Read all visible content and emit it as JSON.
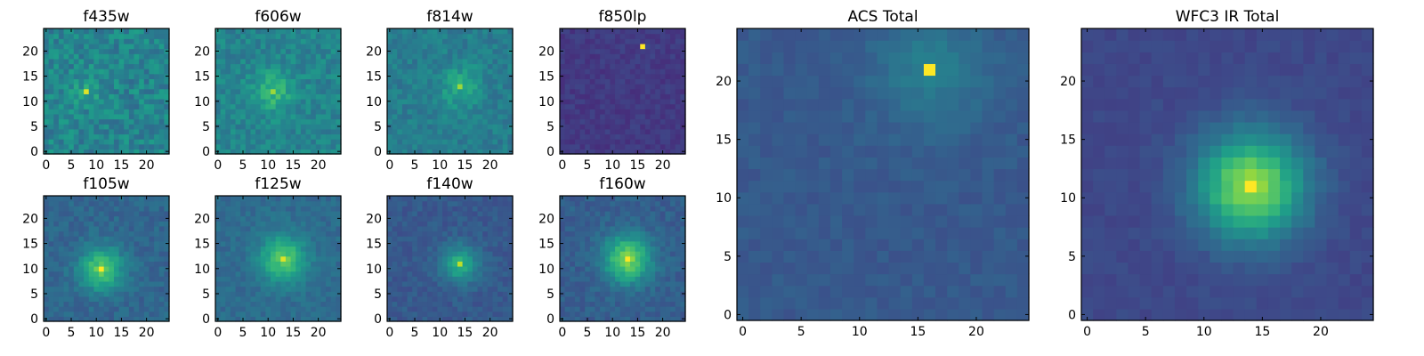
{
  "chart_data": [
    {
      "type": "heatmap",
      "title": "f435w",
      "xticks": [
        0,
        5,
        10,
        15,
        20
      ],
      "yticks": [
        0,
        5,
        10,
        15,
        20
      ],
      "xlim": [
        -0.5,
        24.5
      ],
      "ylim": [
        -0.5,
        24.5
      ],
      "grid_size": [
        25,
        25
      ],
      "colormap": "viridis",
      "peak": [
        8,
        12
      ],
      "peak_value": 0.95,
      "background": 0.45,
      "noise": 0.22,
      "blob_sigma": 2.5,
      "blob_amp": 0.1
    },
    {
      "type": "heatmap",
      "title": "f606w",
      "xticks": [
        0,
        5,
        10,
        15,
        20
      ],
      "yticks": [
        0,
        5,
        10,
        15,
        20
      ],
      "xlim": [
        -0.5,
        24.5
      ],
      "ylim": [
        -0.5,
        24.5
      ],
      "grid_size": [
        25,
        25
      ],
      "colormap": "viridis",
      "peak": [
        11,
        12
      ],
      "peak_value": 0.85,
      "background": 0.45,
      "noise": 0.16,
      "blob_sigma": 2.8,
      "blob_amp": 0.22
    },
    {
      "type": "heatmap",
      "title": "f814w",
      "xticks": [
        0,
        5,
        10,
        15,
        20
      ],
      "yticks": [
        0,
        5,
        10,
        15,
        20
      ],
      "xlim": [
        -0.5,
        24.5
      ],
      "ylim": [
        -0.5,
        24.5
      ],
      "grid_size": [
        25,
        25
      ],
      "colormap": "viridis",
      "peak": [
        14,
        13
      ],
      "peak_value": 0.85,
      "background": 0.42,
      "noise": 0.14,
      "blob_sigma": 3.0,
      "blob_amp": 0.18
    },
    {
      "type": "heatmap",
      "title": "f850lp",
      "xticks": [
        0,
        5,
        10,
        15,
        20
      ],
      "yticks": [
        0,
        5,
        10,
        15,
        20
      ],
      "xlim": [
        -0.5,
        24.5
      ],
      "ylim": [
        -0.5,
        24.5
      ],
      "grid_size": [
        25,
        25
      ],
      "colormap": "viridis",
      "peak": [
        16,
        21
      ],
      "peak_value": 1.0,
      "background": 0.17,
      "noise": 0.08,
      "blob_sigma": 2.0,
      "blob_amp": 0.02
    },
    {
      "type": "heatmap",
      "title": "f105w",
      "xticks": [
        0,
        5,
        10,
        15,
        20
      ],
      "yticks": [
        0,
        5,
        10,
        15,
        20
      ],
      "xlim": [
        -0.5,
        24.5
      ],
      "ylim": [
        -0.5,
        24.5
      ],
      "grid_size": [
        25,
        25
      ],
      "colormap": "viridis",
      "peak": [
        11,
        10
      ],
      "peak_value": 1.0,
      "background": 0.33,
      "noise": 0.11,
      "blob_sigma": 3.0,
      "blob_amp": 0.42
    },
    {
      "type": "heatmap",
      "title": "f125w",
      "xticks": [
        0,
        5,
        10,
        15,
        20
      ],
      "yticks": [
        0,
        5,
        10,
        15,
        20
      ],
      "xlim": [
        -0.5,
        24.5
      ],
      "ylim": [
        -0.5,
        24.5
      ],
      "grid_size": [
        25,
        25
      ],
      "colormap": "viridis",
      "peak": [
        13,
        12
      ],
      "peak_value": 0.95,
      "background": 0.35,
      "noise": 0.1,
      "blob_sigma": 3.2,
      "blob_amp": 0.4
    },
    {
      "type": "heatmap",
      "title": "f140w",
      "xticks": [
        0,
        5,
        10,
        15,
        20
      ],
      "yticks": [
        0,
        5,
        10,
        15,
        20
      ],
      "xlim": [
        -0.5,
        24.5
      ],
      "ylim": [
        -0.5,
        24.5
      ],
      "grid_size": [
        25,
        25
      ],
      "colormap": "viridis",
      "peak": [
        14,
        11
      ],
      "peak_value": 0.9,
      "background": 0.28,
      "noise": 0.09,
      "blob_sigma": 2.6,
      "blob_amp": 0.35
    },
    {
      "type": "heatmap",
      "title": "f160w",
      "xticks": [
        0,
        5,
        10,
        15,
        20
      ],
      "yticks": [
        0,
        5,
        10,
        15,
        20
      ],
      "xlim": [
        -0.5,
        24.5
      ],
      "ylim": [
        -0.5,
        24.5
      ],
      "grid_size": [
        25,
        25
      ],
      "colormap": "viridis",
      "peak": [
        13,
        12
      ],
      "peak_value": 1.0,
      "background": 0.3,
      "noise": 0.1,
      "blob_sigma": 3.3,
      "blob_amp": 0.5
    },
    {
      "type": "heatmap",
      "title": "ACS Total",
      "xticks": [
        0,
        5,
        10,
        15,
        20
      ],
      "yticks": [
        0,
        5,
        10,
        15,
        20
      ],
      "xlim": [
        -0.5,
        24.5
      ],
      "ylim": [
        -0.5,
        24.5
      ],
      "grid_size": [
        25,
        25
      ],
      "colormap": "viridis",
      "peak": [
        16,
        21
      ],
      "peak_value": 1.0,
      "background": 0.28,
      "noise": 0.06,
      "blob_sigma": 3.5,
      "blob_amp": 0.14
    },
    {
      "type": "heatmap",
      "title": "WFC3 IR Total",
      "xticks": [
        0,
        5,
        10,
        15,
        20
      ],
      "yticks": [
        0,
        5,
        10,
        15,
        20
      ],
      "xlim": [
        -0.5,
        24.5
      ],
      "ylim": [
        -0.5,
        24.5
      ],
      "grid_size": [
        25,
        25
      ],
      "colormap": "viridis",
      "peak": [
        14,
        11
      ],
      "peak_value": 1.0,
      "background": 0.22,
      "noise": 0.05,
      "blob_sigma": 3.2,
      "blob_amp": 0.62
    }
  ],
  "colors": {
    "frame": "#000000",
    "viridis": [
      "#440154",
      "#482878",
      "#3e4989",
      "#31688e",
      "#26828e",
      "#1f9e89",
      "#35b779",
      "#6ece58",
      "#b5de2b",
      "#fde725"
    ]
  }
}
